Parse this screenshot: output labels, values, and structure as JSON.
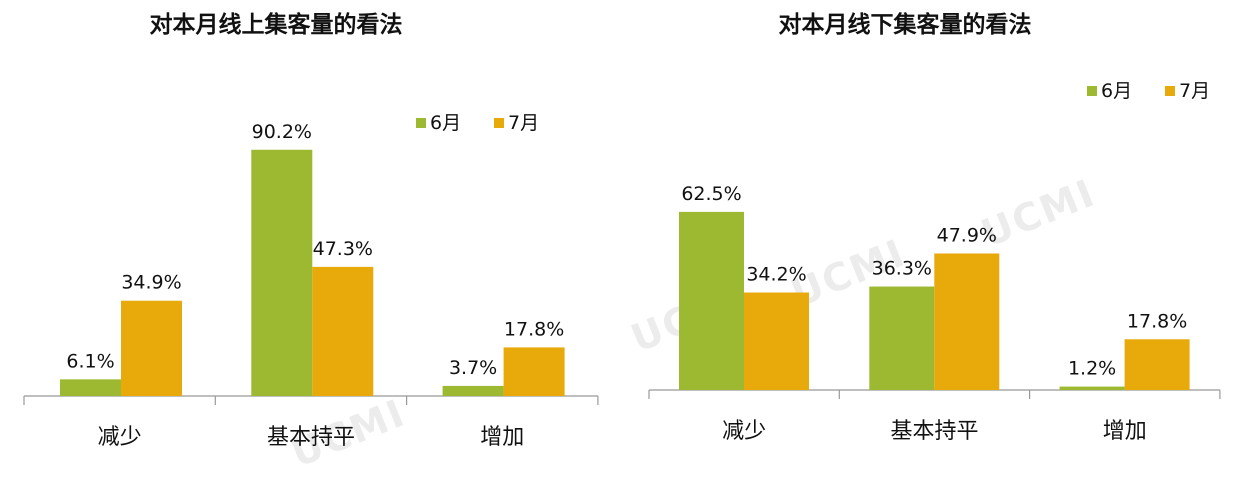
{
  "colors": {
    "june": "#9cb931",
    "july": "#e8a90a",
    "axis": "#999999"
  },
  "watermark": "UCMI",
  "chart_data": [
    {
      "type": "bar",
      "title": "对本月线上集客量的看法",
      "categories": [
        "减少",
        "基本持平",
        "增加"
      ],
      "series": [
        {
          "name": "6月",
          "values": [
            6.1,
            90.2,
            3.7
          ],
          "labels": [
            "6.1%",
            "90.2%",
            "3.7%"
          ]
        },
        {
          "name": "7月",
          "values": [
            34.9,
            47.3,
            17.8
          ],
          "labels": [
            "34.9%",
            "47.3%",
            "17.8%"
          ]
        }
      ],
      "ylim": [
        0,
        100
      ],
      "grid": false,
      "legend_position": "top-right"
    },
    {
      "type": "bar",
      "title": "对本月线下集客量的看法",
      "categories": [
        "减少",
        "基本持平",
        "增加"
      ],
      "series": [
        {
          "name": "6月",
          "values": [
            62.5,
            36.3,
            1.2
          ],
          "labels": [
            "62.5%",
            "36.3%",
            "1.2%"
          ]
        },
        {
          "name": "7月",
          "values": [
            34.2,
            47.9,
            17.8
          ],
          "labels": [
            "34.2%",
            "47.9%",
            "17.8%"
          ]
        }
      ],
      "ylim": [
        0,
        100
      ],
      "grid": false,
      "legend_position": "top-right"
    }
  ]
}
